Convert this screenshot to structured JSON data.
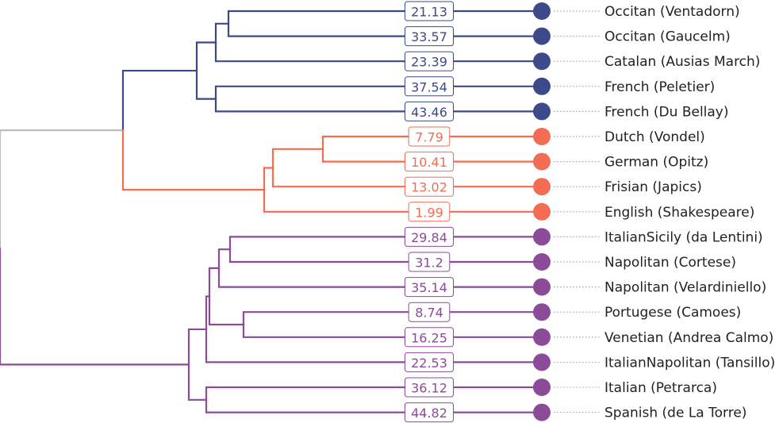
{
  "colors": {
    "root": "#bdbdbd",
    "cluster_blue": "#3d4a8a",
    "cluster_orange": "#f26d52",
    "cluster_purple": "#8c4b99"
  },
  "leaves": [
    {
      "label": "Occitan (Ventadorn)",
      "value": "21.13",
      "cluster": "blue"
    },
    {
      "label": "Occitan (Gaucelm)",
      "value": "33.57",
      "cluster": "blue"
    },
    {
      "label": "Catalan (Ausias March)",
      "value": "23.39",
      "cluster": "blue"
    },
    {
      "label": "French (Peletier)",
      "value": "37.54",
      "cluster": "blue"
    },
    {
      "label": "French (Du Bellay)",
      "value": "43.46",
      "cluster": "blue"
    },
    {
      "label": "Dutch (Vondel)",
      "value": "7.79",
      "cluster": "orange"
    },
    {
      "label": "German (Opitz)",
      "value": "10.41",
      "cluster": "orange"
    },
    {
      "label": "Frisian (Japics)",
      "value": "13.02",
      "cluster": "orange"
    },
    {
      "label": "English (Shakespeare)",
      "value": "1.99",
      "cluster": "orange"
    },
    {
      "label": "ItalianSicily (da Lentini)",
      "value": "29.84",
      "cluster": "purple"
    },
    {
      "label": "Napolitan (Cortese)",
      "value": "31.2",
      "cluster": "purple"
    },
    {
      "label": "Napolitan (Velardiniello)",
      "value": "35.14",
      "cluster": "purple"
    },
    {
      "label": "Portugese (Camoes)",
      "value": "8.74",
      "cluster": "purple"
    },
    {
      "label": "Venetian (Andrea Calmo)",
      "value": "16.25",
      "cluster": "purple"
    },
    {
      "label": "ItalianNapolitan (Tansillo)",
      "value": "22.53",
      "cluster": "purple"
    },
    {
      "label": "Italian (Petrarca)",
      "value": "36.12",
      "cluster": "purple"
    },
    {
      "label": "Spanish (de La Torre)",
      "value": "44.82",
      "cluster": "purple"
    }
  ]
}
